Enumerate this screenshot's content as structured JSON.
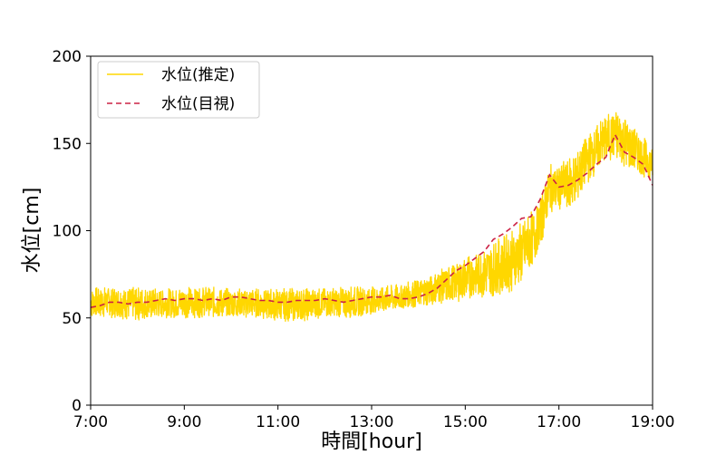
{
  "chart_data": {
    "type": "line",
    "title": "",
    "xlabel": "時間[hour]",
    "ylabel": "水位[cm]",
    "xlim": [
      7,
      19
    ],
    "ylim": [
      0,
      200
    ],
    "x_ticks": [
      {
        "value": 7,
        "label": "7:00"
      },
      {
        "value": 9,
        "label": "9:00"
      },
      {
        "value": 11,
        "label": "11:00"
      },
      {
        "value": 13,
        "label": "13:00"
      },
      {
        "value": 15,
        "label": "15:00"
      },
      {
        "value": 17,
        "label": "17:00"
      },
      {
        "value": 19,
        "label": "19:00"
      }
    ],
    "y_ticks": [
      {
        "value": 0,
        "label": "0"
      },
      {
        "value": 50,
        "label": "50"
      },
      {
        "value": 100,
        "label": "100"
      },
      {
        "value": 150,
        "label": "150"
      },
      {
        "value": 200,
        "label": "200"
      }
    ],
    "grid": false,
    "legend_position": "top-left",
    "series": [
      {
        "name": "水位(推定)",
        "style": "solid",
        "color": "#ffd700",
        "band": true,
        "x": [
          7.0,
          7.5,
          8.0,
          8.5,
          9.0,
          9.5,
          10.0,
          10.5,
          11.0,
          11.5,
          12.0,
          12.5,
          13.0,
          13.5,
          14.0,
          14.5,
          15.0,
          15.5,
          16.0,
          16.3,
          16.6,
          16.8,
          17.0,
          17.3,
          17.6,
          17.9,
          18.1,
          18.3,
          18.6,
          19.0
        ],
        "upper": [
          68,
          68,
          68,
          67,
          68,
          68,
          67,
          67,
          67,
          67,
          67,
          68,
          68,
          69,
          72,
          78,
          85,
          92,
          100,
          108,
          118,
          138,
          138,
          144,
          155,
          164,
          168,
          170,
          160,
          148
        ],
        "lower": [
          50,
          50,
          48,
          50,
          50,
          50,
          50,
          50,
          48,
          48,
          50,
          50,
          52,
          54,
          56,
          58,
          60,
          62,
          65,
          72,
          90,
          110,
          112,
          112,
          126,
          136,
          140,
          138,
          133,
          128
        ]
      },
      {
        "name": "水位(目視)",
        "style": "dashed",
        "color": "#cc2244",
        "x": [
          7.0,
          7.2,
          7.4,
          7.6,
          7.8,
          8.0,
          8.2,
          8.4,
          8.6,
          8.8,
          9.0,
          9.2,
          9.4,
          9.6,
          9.8,
          10.0,
          10.2,
          10.4,
          10.6,
          10.8,
          11.0,
          11.2,
          11.4,
          11.6,
          11.8,
          12.0,
          12.2,
          12.4,
          12.6,
          12.8,
          13.0,
          13.2,
          13.4,
          13.6,
          13.8,
          14.0,
          14.2,
          14.4,
          14.6,
          14.8,
          15.0,
          15.2,
          15.4,
          15.6,
          15.8,
          16.0,
          16.2,
          16.4,
          16.6,
          16.8,
          17.0,
          17.2,
          17.4,
          17.6,
          17.8,
          18.0,
          18.2,
          18.4,
          18.6,
          18.8,
          19.0
        ],
        "values": [
          56,
          57,
          59,
          59,
          58,
          59,
          59,
          60,
          61,
          60,
          61,
          61,
          60,
          61,
          60,
          62,
          62,
          61,
          60,
          60,
          59,
          59,
          60,
          60,
          60,
          61,
          60,
          59,
          60,
          61,
          62,
          62,
          63,
          61,
          61,
          62,
          64,
          67,
          72,
          77,
          80,
          84,
          88,
          95,
          98,
          102,
          107,
          108,
          118,
          132,
          125,
          126,
          129,
          133,
          138,
          142,
          155,
          145,
          142,
          138,
          126
        ]
      }
    ]
  }
}
